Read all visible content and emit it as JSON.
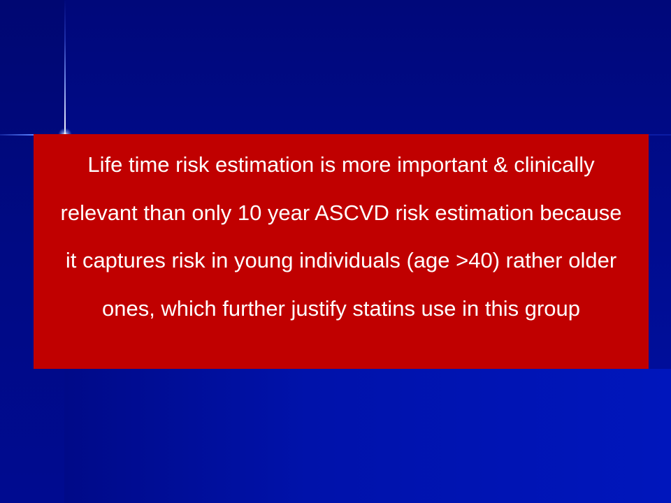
{
  "slide": {
    "body_text": "Life time risk estimation is more important & clinically relevant than only 10 year ASCVD risk estimation because it captures risk in young individuals (age >40) rather older ones, which further justify statins use in this group"
  },
  "colors": {
    "background": "#000c8e",
    "text_box": "#c00000",
    "text": "#ffffff",
    "accent_line": "#ffffff"
  }
}
